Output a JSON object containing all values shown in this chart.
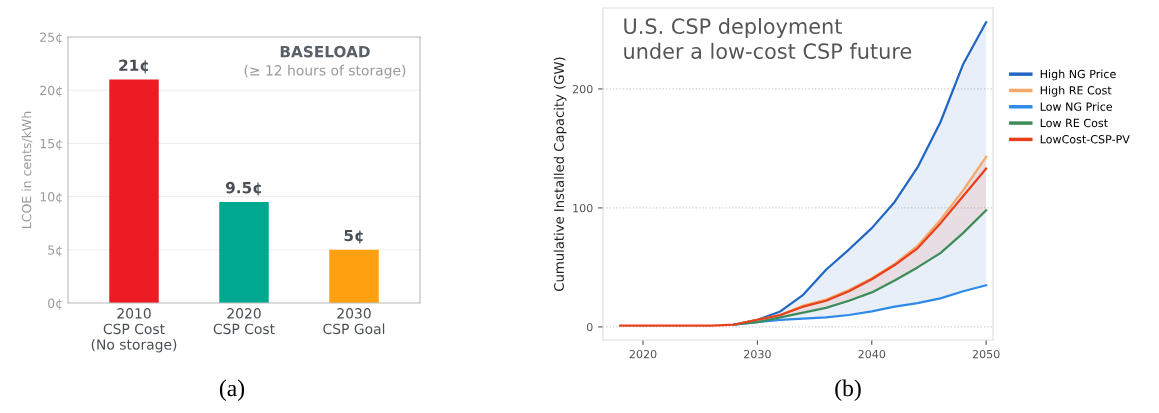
{
  "chart_data": [
    {
      "type": "bar",
      "ylabel": "LCOE in cents/kWh",
      "categories": [
        "2010\nCSP Cost\n(No storage)",
        "2020\nCSP Cost",
        "2030\nCSP Goal"
      ],
      "values": [
        21,
        9.5,
        5
      ],
      "colors": [
        "#ed1c24",
        "#00a88f",
        "#ffa010"
      ],
      "value_labels": [
        "21¢",
        "9.5¢",
        "5¢"
      ],
      "ylim": [
        0,
        25
      ],
      "yticks": [
        {
          "value": 0,
          "label": "0¢"
        },
        {
          "value": 5,
          "label": "5¢"
        },
        {
          "value": 10,
          "label": "10¢"
        },
        {
          "value": 15,
          "label": "15¢"
        },
        {
          "value": 20,
          "label": "20¢"
        },
        {
          "value": 25,
          "label": "25¢"
        }
      ],
      "grid": "y",
      "annotations": [
        "BASELOAD",
        "(≥ 12 hours of storage)",
        "(a)"
      ]
    },
    {
      "type": "line",
      "ylabel": "Cumulative Installed Capacity (GW)",
      "x": [
        2018,
        2020,
        2022,
        2024,
        2026,
        2028,
        2030,
        2032,
        2034,
        2036,
        2038,
        2040,
        2042,
        2044,
        2046,
        2048,
        2050
      ],
      "series": [
        {
          "name": "High NG Price",
          "color": "#2166c4",
          "values": [
            null,
            null,
            null,
            null,
            null,
            2,
            6,
            13,
            27,
            48,
            65,
            83,
            105,
            134,
            172,
            221,
            256
          ],
          "lower": [
            1,
            1,
            1,
            1,
            1,
            2,
            4,
            6,
            7,
            8,
            10,
            13,
            17,
            20,
            24,
            30,
            35
          ],
          "upper": [
            1,
            1,
            1,
            1,
            1,
            2,
            6,
            13,
            27,
            48,
            65,
            83,
            105,
            134,
            172,
            221,
            256
          ]
        },
        {
          "name": "High RE Cost",
          "color": "#f5a868",
          "values": [
            null,
            null,
            null,
            null,
            null,
            2,
            6,
            10,
            18,
            23,
            31,
            41,
            53,
            68,
            90,
            115,
            143
          ]
        },
        {
          "name": "Low NG Price",
          "color": "#2e8ae6",
          "values": [
            null,
            null,
            null,
            null,
            null,
            2,
            4,
            6,
            7,
            8,
            10,
            13,
            17,
            20,
            24,
            30,
            35
          ]
        },
        {
          "name": "Low RE Cost",
          "color": "#3d8c5a",
          "values": [
            null,
            null,
            null,
            null,
            null,
            2,
            4,
            8,
            12,
            16,
            22,
            29,
            39,
            50,
            62,
            79,
            98
          ]
        },
        {
          "name": "LowCost-CSP-PV",
          "color": "#e8401c",
          "values": [
            1,
            1,
            1,
            1,
            1,
            2,
            6,
            10,
            17,
            22,
            30,
            40,
            52,
            66,
            87,
            110,
            133
          ],
          "lower": [
            1,
            1,
            1,
            1,
            1,
            2,
            4,
            8,
            12,
            16,
            22,
            29,
            39,
            50,
            62,
            79,
            98
          ],
          "upper": [
            1,
            1,
            1,
            1,
            1,
            2,
            6,
            10,
            18,
            23,
            31,
            41,
            53,
            68,
            90,
            115,
            143
          ]
        }
      ],
      "xlim": [
        2016.5,
        2050.6
      ],
      "xticks": [
        2020,
        2030,
        2040,
        2050
      ],
      "ylim": [
        -11,
        268
      ],
      "yticks": [
        0,
        100,
        200
      ],
      "grid": "y",
      "legend": "right",
      "annotations": [
        "U.S. CSP deployment\nunder a low-cost CSP future",
        "(b)"
      ]
    }
  ]
}
